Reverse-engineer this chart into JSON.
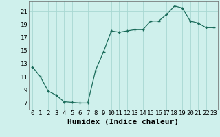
{
  "x": [
    0,
    1,
    2,
    3,
    4,
    5,
    6,
    7,
    8,
    9,
    10,
    11,
    12,
    13,
    14,
    15,
    16,
    17,
    18,
    19,
    20,
    21,
    22,
    23
  ],
  "y": [
    12.5,
    11.0,
    8.8,
    8.2,
    7.2,
    7.1,
    7.0,
    7.0,
    12.0,
    14.8,
    18.0,
    17.8,
    18.0,
    18.2,
    18.2,
    19.5,
    19.5,
    20.5,
    21.8,
    21.5,
    19.5,
    19.2,
    18.5,
    18.5
  ],
  "xlabel": "Humidex (Indice chaleur)",
  "xlim": [
    -0.5,
    23.5
  ],
  "ylim": [
    6.0,
    22.5
  ],
  "yticks": [
    7,
    9,
    11,
    13,
    15,
    17,
    19,
    21
  ],
  "xticks": [
    0,
    1,
    2,
    3,
    4,
    5,
    6,
    7,
    8,
    9,
    10,
    11,
    12,
    13,
    14,
    15,
    16,
    17,
    18,
    19,
    20,
    21,
    22,
    23
  ],
  "line_color": "#1a6b5a",
  "marker": "+",
  "bg_color": "#cff0ec",
  "grid_color": "#a8d8d2",
  "tick_label_fontsize": 6.5,
  "xlabel_fontsize": 8.0
}
